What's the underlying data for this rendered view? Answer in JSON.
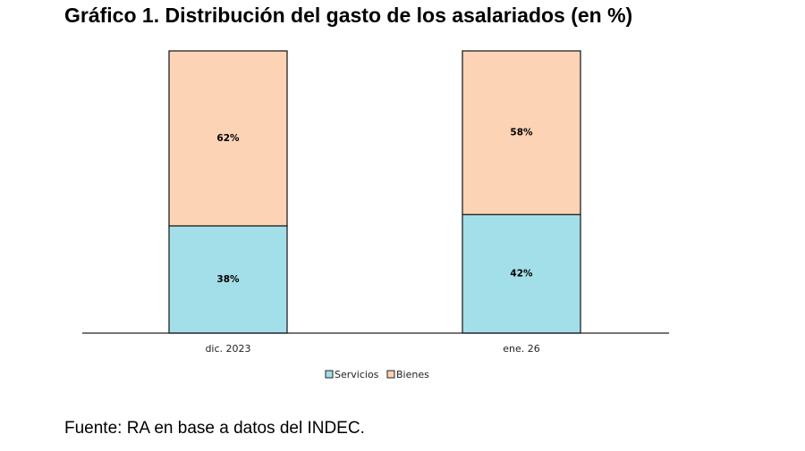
{
  "title": "Gráfico 1. Distribución del gasto de los asalariados (en %)",
  "source": "Fuente: RA en base a datos del INDEC.",
  "colors": {
    "servicios": "#a3dfe9",
    "bienes": "#fcd3b4",
    "stroke": "#222222"
  },
  "chart_data": {
    "type": "bar",
    "stacked": true,
    "categories": [
      "dic. 2023",
      "ene. 26"
    ],
    "series": [
      {
        "name": "Servicios",
        "values": [
          38,
          42
        ],
        "labels": [
          "38%",
          "42%"
        ]
      },
      {
        "name": "Bienes",
        "values": [
          62,
          58
        ],
        "labels": [
          "62%",
          "58%"
        ]
      }
    ],
    "ylim": [
      0,
      100
    ],
    "grid": false,
    "legend": "bottom"
  }
}
